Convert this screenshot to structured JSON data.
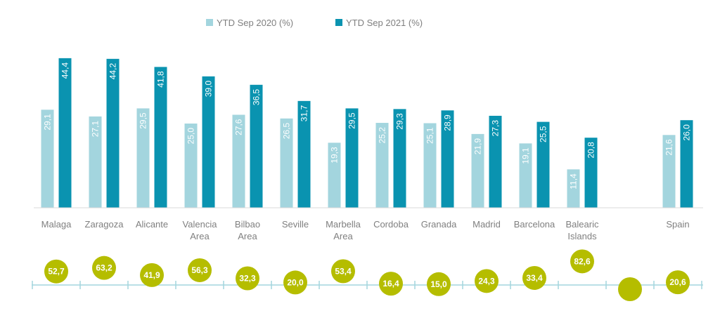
{
  "chart_data": [
    {
      "type": "bar",
      "categories": [
        [
          "Malaga"
        ],
        [
          "Zaragoza"
        ],
        [
          "Alicante"
        ],
        [
          "Valencia",
          "Area"
        ],
        [
          "Bilbao",
          "Area"
        ],
        [
          "Seville"
        ],
        [
          "Marbella",
          "Area"
        ],
        [
          "Cordoba"
        ],
        [
          "Granada"
        ],
        [
          "Madrid"
        ],
        [
          "Barcelona"
        ],
        [
          "Balearic",
          "Islands"
        ],
        [
          ""
        ],
        [
          "Spain"
        ]
      ],
      "series": [
        {
          "name": "YTD Sep 2020 (%)",
          "color": "#a3d5de",
          "values": [
            29.1,
            27.1,
            29.5,
            25.0,
            27.6,
            26.5,
            19.3,
            25.2,
            25.1,
            21.9,
            19.1,
            11.4,
            null,
            21.6
          ],
          "labels": [
            "29,1",
            "27,1",
            "29,5",
            "25,0",
            "27,6",
            "26,5",
            "19,3",
            "25,2",
            "25,1",
            "21,9",
            "19,1",
            "11,4",
            "",
            "21,6"
          ]
        },
        {
          "name": "YTD Sep 2021 (%)",
          "color": "#0a93b0",
          "values": [
            44.4,
            44.2,
            41.8,
            39.0,
            36.5,
            31.7,
            29.5,
            29.3,
            28.9,
            27.3,
            25.5,
            20.8,
            null,
            26.0
          ],
          "labels": [
            "44,4",
            "44,2",
            "41,8",
            "39,0",
            "36,5",
            "31,7",
            "29,5",
            "29,3",
            "28,9",
            "27,3",
            "25,5",
            "20,8",
            "",
            "26,0"
          ]
        }
      ],
      "ylim": [
        0,
        50
      ],
      "legend": "top-center",
      "grid": false
    },
    {
      "type": "scatter",
      "color": "#b5bd00",
      "axis_color": "#a3d5de",
      "values": [
        52.7,
        63.2,
        41.9,
        56.3,
        32.3,
        20.0,
        53.4,
        16.4,
        15.0,
        24.3,
        33.4,
        82.6,
        null,
        20.6
      ],
      "labels": [
        "52,7",
        "63,2",
        "41,9",
        "56,3",
        "32,3",
        "20,0",
        "53,4",
        "16,4",
        "15,0",
        "24,3",
        "33,4",
        "82,6",
        "",
        "20,6"
      ],
      "ylim": [
        0,
        100
      ]
    }
  ]
}
